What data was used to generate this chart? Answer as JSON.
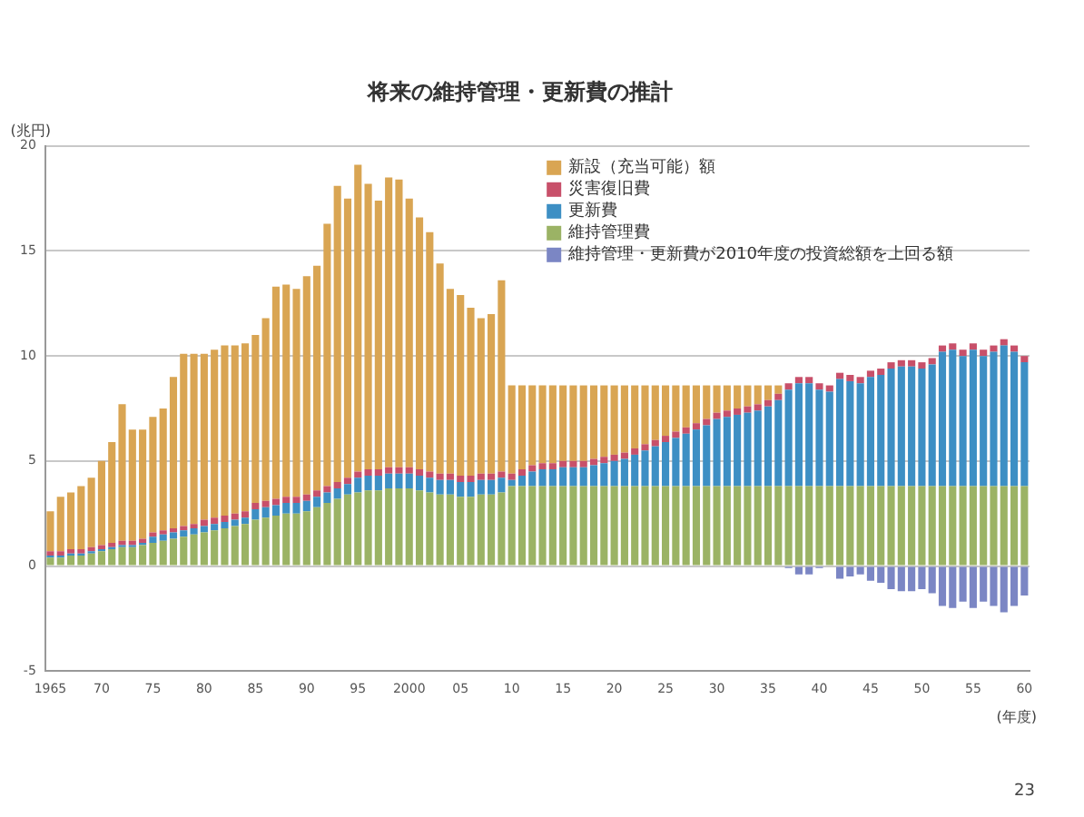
{
  "chart_data": {
    "type": "bar",
    "title": "将来の維持管理・更新費の推計",
    "ylabel": "(兆円)",
    "xlabel": "(年度)",
    "categories": [
      "1965",
      null,
      null,
      null,
      null,
      "70",
      null,
      null,
      null,
      null,
      "75",
      null,
      null,
      null,
      null,
      "80",
      null,
      null,
      null,
      null,
      "85",
      null,
      null,
      null,
      null,
      "90",
      null,
      null,
      null,
      null,
      "95",
      null,
      null,
      null,
      null,
      "2000",
      null,
      null,
      null,
      null,
      "05",
      null,
      null,
      null,
      null,
      "10",
      null,
      null,
      null,
      null,
      "15",
      null,
      null,
      null,
      null,
      "20",
      null,
      null,
      null,
      null,
      "25",
      null,
      null,
      null,
      null,
      "30",
      null,
      null,
      null,
      null,
      "35",
      null,
      null,
      null,
      null,
      "40",
      null,
      null,
      null,
      null,
      "45",
      null,
      null,
      null,
      null,
      "50",
      null,
      null,
      null,
      null,
      "55",
      null,
      null,
      null,
      null,
      "60"
    ],
    "stacked": true,
    "series": [
      {
        "name": "維持管理・更新費が2010年度の投資総額を上回る額",
        "color": "#7b86c4",
        "values": [
          null,
          null,
          null,
          null,
          null,
          null,
          null,
          null,
          null,
          null,
          null,
          null,
          null,
          null,
          null,
          null,
          null,
          null,
          null,
          null,
          null,
          null,
          null,
          null,
          null,
          null,
          null,
          null,
          null,
          null,
          null,
          null,
          null,
          null,
          null,
          null,
          null,
          null,
          null,
          null,
          null,
          null,
          null,
          null,
          null,
          null,
          null,
          null,
          null,
          null,
          null,
          null,
          null,
          null,
          null,
          null,
          null,
          null,
          null,
          null,
          null,
          null,
          null,
          null,
          null,
          null,
          null,
          null,
          null,
          null,
          null,
          null,
          -0.1,
          -0.4,
          -0.4,
          -0.1,
          0,
          -0.6,
          -0.5,
          -0.4,
          -0.7,
          -0.8,
          -1.1,
          -1.2,
          -1.2,
          -1.1,
          -1.3,
          -1.9,
          -2.0,
          -1.7,
          -2.0,
          -1.7,
          -1.9,
          -2.2,
          -1.9,
          -1.4
        ]
      },
      {
        "name": "維持管理費",
        "color": "#9bb365",
        "values": [
          0.4,
          0.4,
          0.5,
          0.5,
          0.6,
          0.7,
          0.8,
          0.9,
          0.9,
          1.0,
          1.1,
          1.2,
          1.3,
          1.4,
          1.5,
          1.6,
          1.7,
          1.8,
          1.9,
          2.0,
          2.2,
          2.3,
          2.4,
          2.5,
          2.5,
          2.6,
          2.8,
          3.0,
          3.2,
          3.4,
          3.5,
          3.6,
          3.6,
          3.7,
          3.7,
          3.7,
          3.6,
          3.5,
          3.4,
          3.4,
          3.3,
          3.3,
          3.4,
          3.4,
          3.5,
          3.8,
          3.8,
          3.8,
          3.8,
          3.8,
          3.8,
          3.8,
          3.8,
          3.8,
          3.8,
          3.8,
          3.8,
          3.8,
          3.8,
          3.8,
          3.8,
          3.8,
          3.8,
          3.8,
          3.8,
          3.8,
          3.8,
          3.8,
          3.8,
          3.8,
          3.8,
          3.8,
          3.8,
          3.8,
          3.8,
          3.8,
          3.8,
          3.8,
          3.8,
          3.8,
          3.8,
          3.8,
          3.8,
          3.8,
          3.8,
          3.8,
          3.8,
          3.8,
          3.8,
          3.8,
          3.8,
          3.8,
          3.8,
          3.8,
          3.8,
          3.8
        ]
      },
      {
        "name": "更新費",
        "color": "#3d8fc4",
        "values": [
          0.1,
          0.1,
          0.1,
          0.1,
          0.1,
          0.1,
          0.1,
          0.1,
          0.1,
          0.1,
          0.3,
          0.3,
          0.3,
          0.3,
          0.3,
          0.3,
          0.3,
          0.3,
          0.3,
          0.3,
          0.5,
          0.5,
          0.5,
          0.5,
          0.5,
          0.5,
          0.5,
          0.5,
          0.5,
          0.5,
          0.7,
          0.7,
          0.7,
          0.7,
          0.7,
          0.7,
          0.7,
          0.7,
          0.7,
          0.7,
          0.7,
          0.7,
          0.7,
          0.7,
          0.7,
          0.3,
          0.5,
          0.7,
          0.8,
          0.8,
          0.9,
          0.9,
          0.9,
          1.0,
          1.1,
          1.2,
          1.3,
          1.5,
          1.7,
          1.9,
          2.1,
          2.3,
          2.5,
          2.7,
          2.9,
          3.2,
          3.3,
          3.4,
          3.5,
          3.6,
          3.8,
          4.1,
          4.6,
          4.9,
          4.9,
          4.6,
          4.5,
          5.1,
          5.0,
          4.9,
          5.2,
          5.3,
          5.6,
          5.7,
          5.7,
          5.6,
          5.8,
          6.4,
          6.5,
          6.2,
          6.5,
          6.2,
          6.4,
          6.7,
          6.4,
          5.9
        ]
      },
      {
        "name": "災害復旧費",
        "color": "#c8506a",
        "values": [
          0.2,
          0.2,
          0.2,
          0.2,
          0.2,
          0.2,
          0.2,
          0.2,
          0.2,
          0.2,
          0.2,
          0.2,
          0.2,
          0.2,
          0.2,
          0.3,
          0.3,
          0.3,
          0.3,
          0.3,
          0.3,
          0.3,
          0.3,
          0.3,
          0.3,
          0.3,
          0.3,
          0.3,
          0.3,
          0.3,
          0.3,
          0.3,
          0.3,
          0.3,
          0.3,
          0.3,
          0.3,
          0.3,
          0.3,
          0.3,
          0.3,
          0.3,
          0.3,
          0.3,
          0.3,
          0.3,
          0.3,
          0.3,
          0.3,
          0.3,
          0.3,
          0.3,
          0.3,
          0.3,
          0.3,
          0.3,
          0.3,
          0.3,
          0.3,
          0.3,
          0.3,
          0.3,
          0.3,
          0.3,
          0.3,
          0.3,
          0.3,
          0.3,
          0.3,
          0.3,
          0.3,
          0.3,
          0.3,
          0.3,
          0.3,
          0.3,
          0.3,
          0.3,
          0.3,
          0.3,
          0.3,
          0.3,
          0.3,
          0.3,
          0.3,
          0.3,
          0.3,
          0.3,
          0.3,
          0.3,
          0.3,
          0.3,
          0.3,
          0.3,
          0.3,
          0.3
        ]
      },
      {
        "name": "新設（充当可能）額",
        "color": "#d9a553",
        "values": [
          1.9,
          2.6,
          2.7,
          3.0,
          3.3,
          4.0,
          4.8,
          6.5,
          5.3,
          5.2,
          5.5,
          5.8,
          7.2,
          8.2,
          8.1,
          7.9,
          8.0,
          8.1,
          8.0,
          8.0,
          8.0,
          8.7,
          10.1,
          10.1,
          9.9,
          10.4,
          10.7,
          12.5,
          14.1,
          13.3,
          14.6,
          13.6,
          12.8,
          13.8,
          13.7,
          12.8,
          12.0,
          11.4,
          10.0,
          8.8,
          8.6,
          8.0,
          7.4,
          7.6,
          9.1,
          4.2,
          4.0,
          3.8,
          3.7,
          3.7,
          3.6,
          3.6,
          3.6,
          3.5,
          3.4,
          3.3,
          3.2,
          3.0,
          2.8,
          2.6,
          2.4,
          2.2,
          2.0,
          1.8,
          1.6,
          1.3,
          1.2,
          1.1,
          1.0,
          0.9,
          0.7,
          0.4,
          0,
          0,
          0,
          0,
          0,
          0,
          0,
          0,
          0,
          0,
          0,
          0,
          0,
          0,
          0,
          0,
          0,
          0,
          0,
          0,
          0,
          0,
          0,
          0
        ]
      }
    ],
    "ylim": [
      -5,
      20
    ],
    "yticks": [
      -5,
      0,
      5,
      10,
      15,
      20
    ],
    "grid": "y",
    "legend": "top right",
    "annotations": [
      "23"
    ]
  }
}
